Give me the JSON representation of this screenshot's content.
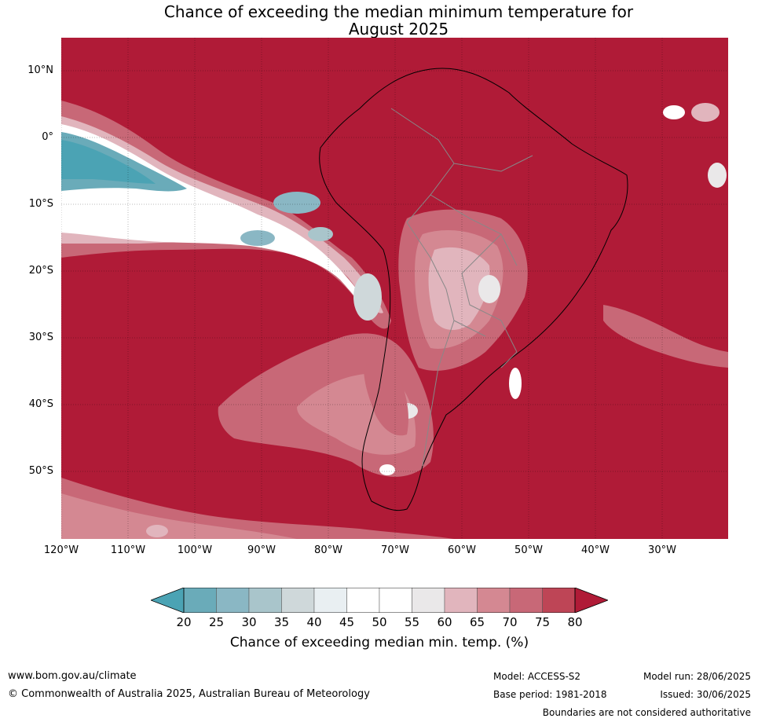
{
  "title": {
    "line1": "Chance of exceeding the median minimum temperature for",
    "line2": "August 2025"
  },
  "map": {
    "region": "South America",
    "background_color": "#b01b37",
    "lat_labels": [
      "10°N",
      "0°",
      "10°S",
      "20°S",
      "30°S",
      "40°S",
      "50°S"
    ],
    "lon_labels": [
      "120°W",
      "110°W",
      "100°W",
      "90°W",
      "80°W",
      "70°W",
      "60°W",
      "50°W",
      "40°W",
      "30°W"
    ]
  },
  "colorbar": {
    "ticks": [
      "20",
      "25",
      "30",
      "35",
      "40",
      "45",
      "50",
      "55",
      "60",
      "65",
      "70",
      "75",
      "80"
    ],
    "colors": [
      "#4ba3b4",
      "#6aabb9",
      "#8ab7c4",
      "#a9c5cb",
      "#cfd8da",
      "#e9eff2",
      "#ffffff",
      "#ffffff",
      "#eae8e9",
      "#e1b5bd",
      "#d48892",
      "#c86877",
      "#be4556",
      "#b01b37"
    ],
    "label": "Chance of exceeding median min. temp. (%)"
  },
  "footer": {
    "website": "www.bom.gov.au/climate",
    "copyright": "© Commonwealth of Australia 2025, Australian Bureau of Meteorology",
    "model": "Model: ACCESS-S2",
    "base_period": "Base period: 1981-2018",
    "model_run": "Model run: 28/06/2025",
    "issued": "Issued: 30/06/2025",
    "disclaimer": "Boundaries are not considered authoritative"
  }
}
